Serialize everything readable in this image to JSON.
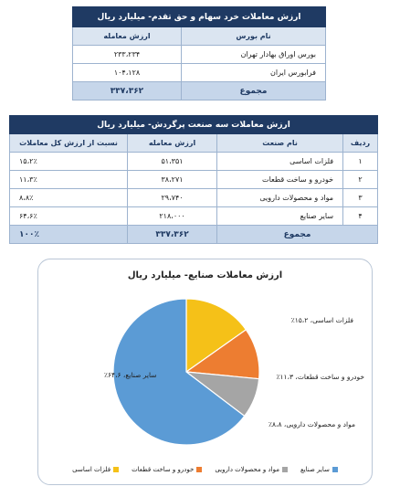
{
  "table1": {
    "title": "ارزش معاملات خرد سهام و حق تقدم- میلیارد ریال",
    "headers": [
      "نام بورس",
      "ارزش معامله"
    ],
    "rows": [
      {
        "name": "بورس اوراق بهادار تهران",
        "value": "۲۳۳،۲۳۴"
      },
      {
        "name": "فرابورس ایران",
        "value": "۱۰۴،۱۲۸"
      }
    ],
    "total_label": "مجموع",
    "total_value": "۳۳۷،۳۶۲"
  },
  "table2": {
    "title": "ارزش معاملات سه صنعت پرگردش- میلیارد ریال",
    "headers": [
      "ردیف",
      "نام صنعت",
      "ارزش معامله",
      "نسبت از ارزش کل معاملات"
    ],
    "rows": [
      {
        "idx": "۱",
        "name": "فلزات اساسی",
        "value": "۵۱،۳۵۱",
        "share": "۱۵،۲٪"
      },
      {
        "idx": "۲",
        "name": "خودرو و ساخت قطعات",
        "value": "۳۸،۲۷۱",
        "share": "۱۱،۳٪"
      },
      {
        "idx": "۳",
        "name": "مواد و محصولات دارویی",
        "value": "۲۹،۷۴۰",
        "share": "۸،۸٪"
      },
      {
        "idx": "۴",
        "name": "سایر صنایع",
        "value": "۲۱۸،۰۰۰",
        "share": "۶۴،۶٪"
      }
    ],
    "total_label": "مجموع",
    "total_value": "۳۳۷،۳۶۲",
    "total_share": "۱۰۰٪"
  },
  "chart_data": {
    "type": "pie",
    "title": "ارزش معاملات صنایع- میلیارد ریال",
    "categories": [
      "فلزات اساسی",
      "خودرو و ساخت قطعات",
      "مواد و محصولات دارویی",
      "سایر صنایع"
    ],
    "values": [
      15.2,
      11.3,
      8.8,
      64.6
    ],
    "colors": [
      "#f5c118",
      "#ed7d31",
      "#a5a5a5",
      "#5b9bd5"
    ],
    "data_labels": [
      "فلزات اساسی، ۱۵،۲٪",
      "خودرو و ساخت قطعات، ۱۱،۳٪",
      "مواد و محصولات دارویی، ۸،۸٪",
      "سایر صنایع، ۶۴،۶٪"
    ],
    "legend_position": "bottom"
  }
}
